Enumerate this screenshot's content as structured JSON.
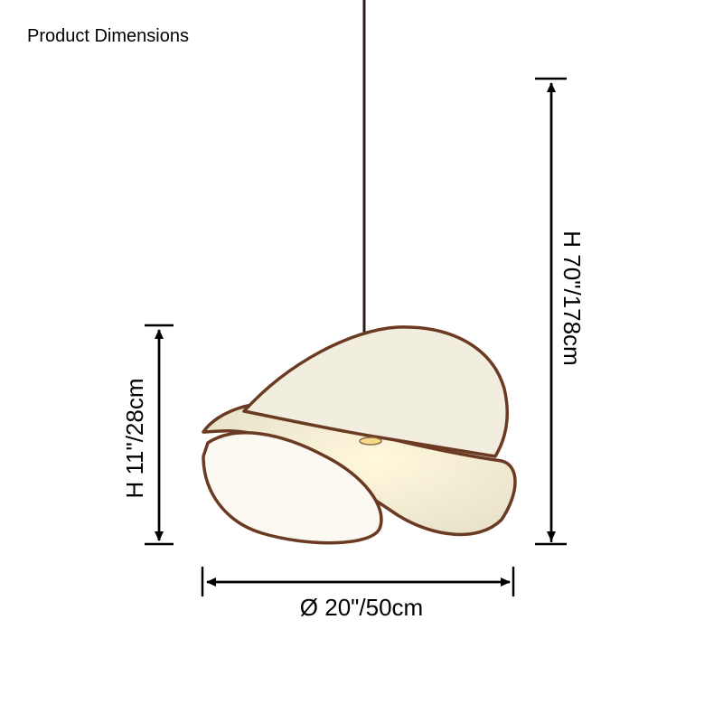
{
  "header": {
    "title": "Product Dimensions"
  },
  "dimensions": {
    "total_height": "H  70\"/178cm",
    "shade_height": "H  11\"/28cm",
    "diameter": "Ø 20\"/50cm"
  }
}
